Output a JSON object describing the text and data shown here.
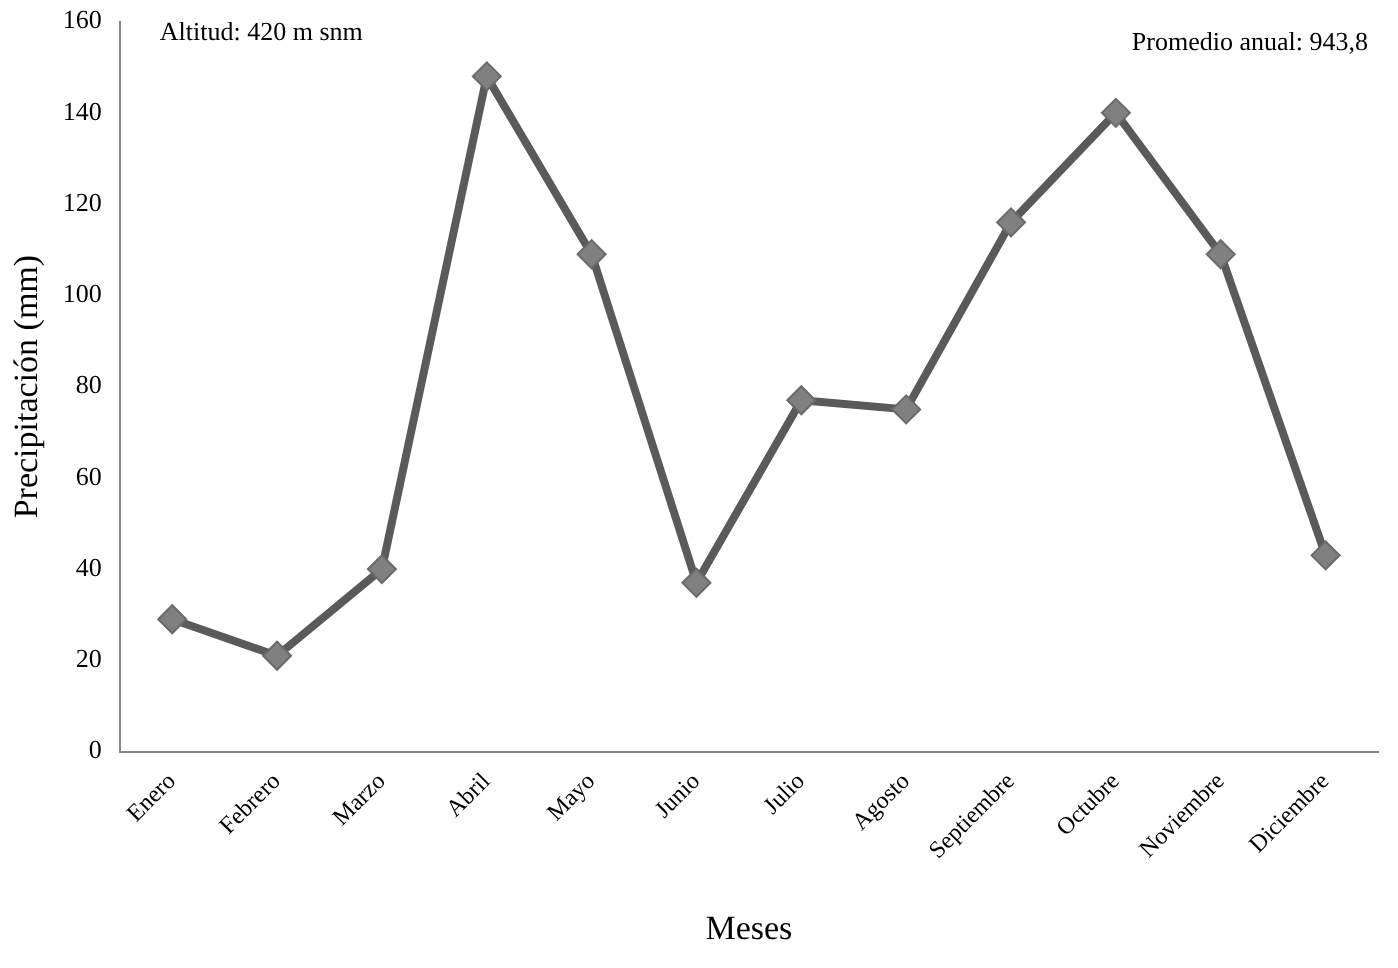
{
  "chart_data": {
    "type": "line",
    "xlabel": "Meses",
    "ylabel": "Precipitación (mm)",
    "categories": [
      "Enero",
      "Febrero",
      "Marzo",
      "Abril",
      "Mayo",
      "Junio",
      "Julio",
      "Agosto",
      "Septiembre",
      "Octubre",
      "Noviembre",
      "Diciembre"
    ],
    "series": [
      {
        "color": "#5a5a5a",
        "values": [
          29,
          21,
          40,
          148,
          109,
          37,
          77,
          75,
          116,
          140,
          109,
          43
        ]
      }
    ],
    "ylim": [
      0,
      160
    ],
    "yticks": [
      0,
      20,
      40,
      60,
      80,
      100,
      120,
      140,
      160
    ],
    "grid": false,
    "legend": false,
    "marker": "diamond",
    "line_style": "solid",
    "annotations": [
      "Altitud: 420 m snm",
      "Promedio anual: 943,8"
    ]
  }
}
